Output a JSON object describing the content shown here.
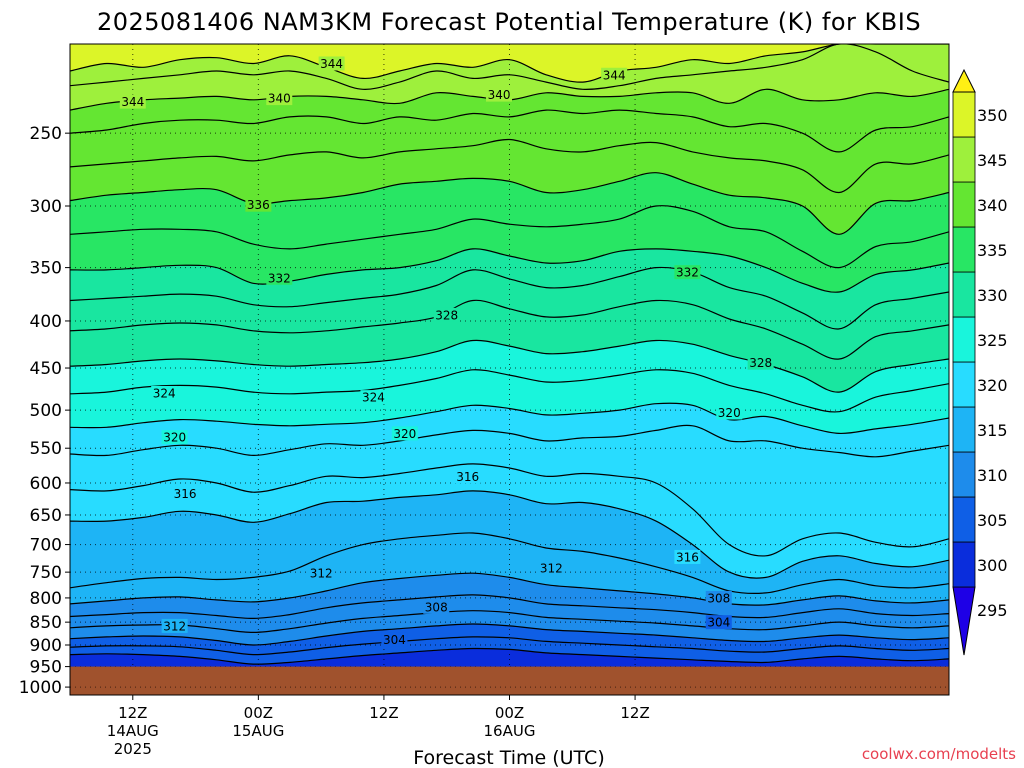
{
  "chart_data": {
    "type": "heatmap",
    "title": "2025081406 NAM3KM Forecast Potential Temperature (K) for KBIS",
    "xlabel": "Forecast Time (UTC)",
    "ylabel": "",
    "credit": "coolwx.com/modelts",
    "y_ticks": [
      250,
      300,
      350,
      400,
      450,
      500,
      550,
      600,
      650,
      700,
      750,
      800,
      850,
      900,
      950,
      1000
    ],
    "y_scale": "log",
    "y_range": [
      200,
      1020
    ],
    "x_range_hours": [
      6,
      90
    ],
    "x_ticks": [
      {
        "hour": 12,
        "label": "12Z",
        "date": "14AUG",
        "year": "2025"
      },
      {
        "hour": 24,
        "label": "00Z",
        "date": "15AUG",
        "year": ""
      },
      {
        "hour": 36,
        "label": "12Z",
        "date": "",
        "year": ""
      },
      {
        "hour": 48,
        "label": "00Z",
        "date": "16AUG",
        "year": ""
      },
      {
        "hour": 60,
        "label": "12Z",
        "date": "",
        "year": ""
      }
    ],
    "grid": true,
    "colorbar": {
      "levels": [
        295,
        300,
        305,
        310,
        315,
        320,
        325,
        330,
        335,
        340,
        345,
        350
      ],
      "colors": [
        "#1e00e6",
        "#0a2ddc",
        "#0f5fe6",
        "#1e8ceb",
        "#1eb4f5",
        "#28dcff",
        "#19f5dc",
        "#19e6a0",
        "#28e664",
        "#64e632",
        "#9ef03c",
        "#dcf528",
        "#fff014"
      ]
    },
    "ground": {
      "pressure": 950,
      "color": "#a0522d"
    },
    "contour_interval": 2,
    "contour_labels": [
      {
        "value": 344,
        "hour": 31,
        "p": 210
      },
      {
        "value": 344,
        "hour": 58,
        "p": 216
      },
      {
        "value": 344,
        "hour": 12,
        "p": 231
      },
      {
        "value": 340,
        "hour": 26,
        "p": 229
      },
      {
        "value": 340,
        "hour": 47,
        "p": 227
      },
      {
        "value": 336,
        "hour": 24,
        "p": 299
      },
      {
        "value": 332,
        "hour": 26,
        "p": 359
      },
      {
        "value": 332,
        "hour": 65,
        "p": 354
      },
      {
        "value": 328,
        "hour": 42,
        "p": 394
      },
      {
        "value": 328,
        "hour": 72,
        "p": 444
      },
      {
        "value": 324,
        "hour": 15,
        "p": 479
      },
      {
        "value": 324,
        "hour": 35,
        "p": 484
      },
      {
        "value": 320,
        "hour": 16,
        "p": 535
      },
      {
        "value": 320,
        "hour": 38,
        "p": 530
      },
      {
        "value": 320,
        "hour": 69,
        "p": 503
      },
      {
        "value": 316,
        "hour": 17,
        "p": 616
      },
      {
        "value": 316,
        "hour": 44,
        "p": 590
      },
      {
        "value": 316,
        "hour": 65,
        "p": 722
      },
      {
        "value": 312,
        "hour": 30,
        "p": 752
      },
      {
        "value": 312,
        "hour": 52,
        "p": 742
      },
      {
        "value": 312,
        "hour": 16,
        "p": 858
      },
      {
        "value": 308,
        "hour": 41,
        "p": 818
      },
      {
        "value": 308,
        "hour": 68,
        "p": 800
      },
      {
        "value": 304,
        "hour": 37,
        "p": 888
      },
      {
        "value": 304,
        "hour": 68,
        "p": 850
      }
    ],
    "isotherms": [
      {
        "value": 344,
        "p": [
          214,
          210,
          212,
          208,
          207,
          210,
          206,
          212,
          218,
          214,
          210,
          212,
          208,
          216,
          220,
          214,
          212,
          208,
          210,
          206,
          204,
          200,
          200,
          200,
          200
        ]
      },
      {
        "value": 342,
        "p": [
          222,
          220,
          218,
          216,
          214,
          216,
          214,
          218,
          224,
          220,
          214,
          218,
          216,
          220,
          224,
          222,
          218,
          216,
          214,
          212,
          208,
          200,
          204,
          214,
          220
        ]
      },
      {
        "value": 340,
        "p": [
          236,
          232,
          230,
          229,
          228,
          230,
          228,
          228,
          230,
          232,
          226,
          228,
          230,
          226,
          228,
          228,
          226,
          226,
          232,
          224,
          230,
          230,
          226,
          228,
          224
        ]
      },
      {
        "value": 338,
        "p": [
          250,
          248,
          244,
          242,
          242,
          244,
          240,
          240,
          244,
          240,
          242,
          238,
          240,
          236,
          238,
          236,
          238,
          240,
          246,
          244,
          250,
          262,
          248,
          246,
          240
        ]
      },
      {
        "value": 336,
        "p": [
          272,
          270,
          268,
          266,
          265,
          268,
          264,
          262,
          266,
          262,
          260,
          258,
          254,
          260,
          262,
          258,
          256,
          262,
          266,
          268,
          274,
          290,
          270,
          270,
          264
        ]
      },
      {
        "value": 334,
        "p": [
          296,
          292,
          290,
          288,
          288,
          298,
          296,
          294,
          290,
          284,
          282,
          280,
          282,
          290,
          288,
          282,
          276,
          284,
          292,
          294,
          300,
          322,
          298,
          296,
          290
        ]
      },
      {
        "value": 332,
        "p": [
          322,
          320,
          318,
          318,
          320,
          330,
          334,
          330,
          326,
          322,
          318,
          310,
          314,
          316,
          314,
          310,
          300,
          304,
          316,
          320,
          336,
          350,
          332,
          328,
          320
        ]
      },
      {
        "value": 330,
        "p": [
          352,
          352,
          350,
          348,
          350,
          364,
          362,
          356,
          352,
          350,
          344,
          334,
          340,
          346,
          344,
          336,
          334,
          336,
          340,
          350,
          364,
          372,
          356,
          352,
          346
        ]
      },
      {
        "value": 328,
        "p": [
          380,
          378,
          376,
          374,
          376,
          384,
          386,
          382,
          378,
          374,
          366,
          352,
          360,
          368,
          366,
          358,
          350,
          354,
          368,
          376,
          392,
          408,
          384,
          378,
          372
        ]
      },
      {
        "value": 326,
        "p": [
          410,
          408,
          404,
          402,
          404,
          410,
          412,
          410,
          406,
          402,
          396,
          380,
          388,
          396,
          394,
          386,
          380,
          384,
          398,
          408,
          424,
          440,
          416,
          410,
          404
        ]
      },
      {
        "value": 324,
        "p": [
          448,
          446,
          442,
          440,
          442,
          446,
          448,
          446,
          444,
          440,
          432,
          420,
          426,
          434,
          432,
          426,
          420,
          424,
          436,
          446,
          460,
          478,
          454,
          446,
          440
        ]
      },
      {
        "value": 322,
        "p": [
          480,
          478,
          472,
          470,
          472,
          478,
          480,
          478,
          476,
          470,
          462,
          452,
          458,
          466,
          464,
          458,
          452,
          456,
          470,
          480,
          494,
          502,
          484,
          476,
          468
        ]
      },
      {
        "value": 320,
        "p": [
          522,
          522,
          516,
          512,
          514,
          518,
          520,
          518,
          516,
          510,
          502,
          494,
          498,
          506,
          504,
          500,
          492,
          494,
          512,
          508,
          520,
          530,
          524,
          518,
          510
        ]
      },
      {
        "value": 318,
        "p": [
          558,
          560,
          552,
          546,
          550,
          560,
          552,
          544,
          546,
          540,
          532,
          526,
          530,
          540,
          536,
          534,
          526,
          520,
          540,
          540,
          550,
          556,
          562,
          554,
          546
        ]
      },
      {
        "value": 316,
        "p": [
          610,
          612,
          604,
          594,
          600,
          614,
          604,
          590,
          592,
          586,
          578,
          572,
          578,
          590,
          586,
          590,
          600,
          640,
          700,
          720,
          690,
          680,
          696,
          704,
          690
        ]
      },
      {
        "value": 314,
        "p": [
          660,
          660,
          654,
          644,
          650,
          662,
          648,
          630,
          628,
          622,
          618,
          612,
          618,
          632,
          630,
          640,
          660,
          700,
          750,
          760,
          730,
          720,
          734,
          740,
          728
        ]
      },
      {
        "value": 312,
        "p": [
          780,
          770,
          762,
          760,
          764,
          760,
          748,
          720,
          700,
          690,
          684,
          680,
          690,
          706,
          712,
          724,
          740,
          760,
          786,
          790,
          774,
          764,
          776,
          780,
          772
        ]
      },
      {
        "value": 310,
        "p": [
          812,
          806,
          800,
          798,
          804,
          808,
          800,
          786,
          770,
          762,
          756,
          752,
          760,
          774,
          780,
          786,
          792,
          800,
          812,
          814,
          804,
          796,
          806,
          810,
          804
        ]
      },
      {
        "value": 308,
        "p": [
          838,
          834,
          830,
          830,
          836,
          842,
          834,
          820,
          810,
          804,
          798,
          794,
          800,
          812,
          816,
          820,
          824,
          830,
          838,
          840,
          830,
          822,
          832,
          836,
          832
        ]
      },
      {
        "value": 306,
        "p": [
          862,
          858,
          856,
          856,
          864,
          872,
          864,
          852,
          842,
          836,
          830,
          826,
          830,
          840,
          844,
          848,
          852,
          858,
          864,
          866,
          858,
          850,
          858,
          862,
          858
        ]
      },
      {
        "value": 304,
        "p": [
          886,
          882,
          880,
          882,
          890,
          900,
          892,
          880,
          870,
          864,
          858,
          854,
          858,
          866,
          870,
          874,
          878,
          884,
          890,
          892,
          884,
          878,
          884,
          888,
          884
        ]
      },
      {
        "value": 302,
        "p": [
          905,
          902,
          902,
          904,
          912,
          922,
          916,
          906,
          898,
          892,
          886,
          882,
          884,
          892,
          896,
          900,
          904,
          908,
          914,
          916,
          908,
          902,
          908,
          912,
          908
        ]
      },
      {
        "value": 300,
        "p": [
          922,
          920,
          922,
          926,
          934,
          944,
          940,
          932,
          924,
          918,
          912,
          908,
          910,
          918,
          922,
          926,
          930,
          934,
          938,
          940,
          932,
          926,
          932,
          936,
          932
        ]
      }
    ]
  }
}
